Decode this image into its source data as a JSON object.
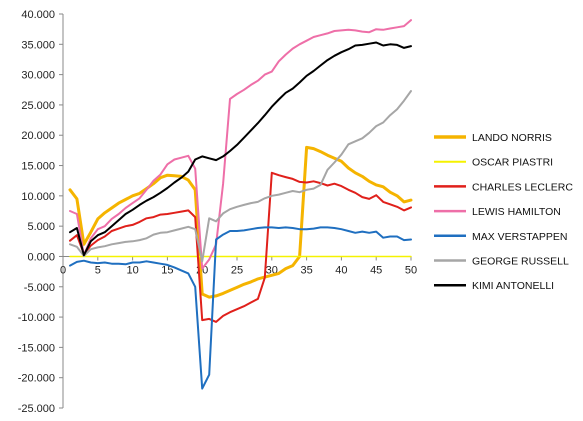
{
  "chart_data": {
    "type": "line",
    "title": "",
    "xlabel": "",
    "ylabel": "",
    "xlim": [
      0,
      50
    ],
    "ylim": [
      -25000,
      40000
    ],
    "x_ticks": [
      0,
      5,
      10,
      15,
      20,
      25,
      30,
      35,
      40,
      45,
      50
    ],
    "x_tick_labels": [
      "0",
      "5",
      "10",
      "15",
      "20",
      "25",
      "30",
      "35",
      "40",
      "45",
      "50"
    ],
    "y_ticks": [
      -25000,
      -20000,
      -15000,
      -10000,
      -5000,
      0,
      5000,
      10000,
      15000,
      20000,
      25000,
      30000,
      35000,
      40000
    ],
    "y_tick_labels": [
      "-25.000",
      "-20.000",
      "-15.000",
      "-10.000",
      "-5.000",
      "0.000",
      "5.000",
      "10.000",
      "15.000",
      "20.000",
      "25.000",
      "30.000",
      "35.000",
      "40.000"
    ],
    "grid": false,
    "legend_position": "right",
    "x": [
      1,
      2,
      3,
      4,
      5,
      6,
      7,
      8,
      9,
      10,
      11,
      12,
      13,
      14,
      15,
      16,
      17,
      18,
      19,
      20,
      21,
      22,
      23,
      24,
      25,
      26,
      27,
      28,
      29,
      30,
      31,
      32,
      33,
      34,
      35,
      36,
      37,
      38,
      39,
      40,
      41,
      42,
      43,
      44,
      45,
      46,
      47,
      48,
      49,
      50
    ],
    "series": [
      {
        "name": "LANDO NORRIS",
        "color": "#f5b400",
        "width": 3,
        "values": [
          11000,
          9500,
          2000,
          4000,
          6200,
          7200,
          8000,
          8800,
          9400,
          10000,
          10400,
          11200,
          12000,
          13000,
          13400,
          13300,
          13200,
          12600,
          11000,
          -6200,
          -6700,
          -6500,
          -6100,
          -5600,
          -5100,
          -4600,
          -4200,
          -3700,
          -3400,
          -3100,
          -2800,
          -2000,
          -1500,
          0,
          18000,
          17800,
          17300,
          16700,
          16200,
          15700,
          14600,
          13800,
          13200,
          12400,
          11800,
          11500,
          10600,
          10000,
          9000,
          9300
        ]
      },
      {
        "name": "OSCAR PIASTRI",
        "color": "#f5f200",
        "width": 1.5,
        "values": [
          0,
          0,
          0,
          0,
          0,
          0,
          0,
          0,
          0,
          0,
          0,
          0,
          0,
          0,
          0,
          0,
          0,
          0,
          0,
          0,
          0,
          0,
          0,
          0,
          0,
          0,
          0,
          0,
          0,
          0,
          0,
          0,
          0,
          0,
          0,
          0,
          0,
          0,
          0,
          0,
          0,
          0,
          0,
          0,
          0,
          0,
          0,
          0,
          0,
          0
        ]
      },
      {
        "name": "CHARLES LECLERC",
        "color": "#e0201b",
        "width": 2,
        "values": [
          2600,
          3500,
          400,
          1800,
          2700,
          3300,
          4200,
          4600,
          5000,
          5200,
          5700,
          6300,
          6500,
          6900,
          7000,
          7200,
          7400,
          7600,
          6500,
          -10500,
          -10300,
          -10800,
          -9800,
          -9200,
          -8700,
          -8200,
          -7600,
          -7000,
          -3500,
          13800,
          13400,
          13100,
          12800,
          12300,
          12200,
          12400,
          12100,
          11700,
          12000,
          11600,
          11000,
          10500,
          9800,
          9500,
          10100,
          9000,
          8600,
          8200,
          7600,
          8100
        ]
      },
      {
        "name": "LEWIS HAMILTON",
        "color": "#ee6fa8",
        "width": 2,
        "values": [
          7500,
          7000,
          200,
          3000,
          4500,
          5000,
          6200,
          7000,
          8000,
          8800,
          9600,
          11000,
          12500,
          13500,
          15200,
          16000,
          16300,
          16600,
          14500,
          -2000,
          -500,
          2000,
          12000,
          26000,
          26800,
          27500,
          28300,
          29000,
          30000,
          30500,
          32200,
          33300,
          34300,
          35000,
          35600,
          36200,
          36500,
          36800,
          37200,
          37300,
          37400,
          37300,
          37100,
          37000,
          37500,
          37400,
          37600,
          37800,
          38000,
          39000
        ]
      },
      {
        "name": "MAX VERSTAPPEN",
        "color": "#1f6fc0",
        "width": 2,
        "values": [
          -1500,
          -900,
          -700,
          -1000,
          -1100,
          -1000,
          -1200,
          -1200,
          -1300,
          -1000,
          -1000,
          -800,
          -1000,
          -1200,
          -1400,
          -1800,
          -2300,
          -2800,
          -5000,
          -21800,
          -19500,
          2800,
          3600,
          4200,
          4200,
          4300,
          4500,
          4700,
          4800,
          4800,
          4700,
          4800,
          4700,
          4500,
          4500,
          4600,
          4800,
          4800,
          4700,
          4500,
          4200,
          3900,
          4100,
          3900,
          4100,
          3100,
          3300,
          3300,
          2700,
          2800
        ]
      },
      {
        "name": "GEORGE RUSSELL",
        "color": "#a6a6a6",
        "width": 2,
        "values": [
          2000,
          1600,
          100,
          1200,
          1500,
          1700,
          2000,
          2200,
          2400,
          2500,
          2700,
          3000,
          3600,
          3900,
          4000,
          4300,
          4600,
          4900,
          4500,
          -800,
          6300,
          5800,
          7100,
          7800,
          8200,
          8500,
          8800,
          9000,
          9600,
          10000,
          10200,
          10500,
          10800,
          10600,
          11000,
          11200,
          11800,
          14300,
          15500,
          16800,
          18500,
          19000,
          19500,
          20400,
          21500,
          22100,
          23300,
          24300,
          25700,
          27300
        ]
      },
      {
        "name": "KIMI ANTONELLI",
        "color": "#000000",
        "width": 2,
        "values": [
          4000,
          4700,
          200,
          2500,
          3500,
          4000,
          5000,
          6000,
          7000,
          7700,
          8500,
          9200,
          9800,
          10500,
          11300,
          12200,
          13000,
          14000,
          16000,
          16500,
          16200,
          15900,
          16500,
          17400,
          18400,
          19600,
          20800,
          22000,
          23300,
          24700,
          25900,
          27000,
          27700,
          28700,
          29800,
          30600,
          31500,
          32400,
          33100,
          33700,
          34200,
          34800,
          34900,
          35100,
          35300,
          34800,
          35000,
          34900,
          34400,
          34700
        ]
      }
    ]
  }
}
